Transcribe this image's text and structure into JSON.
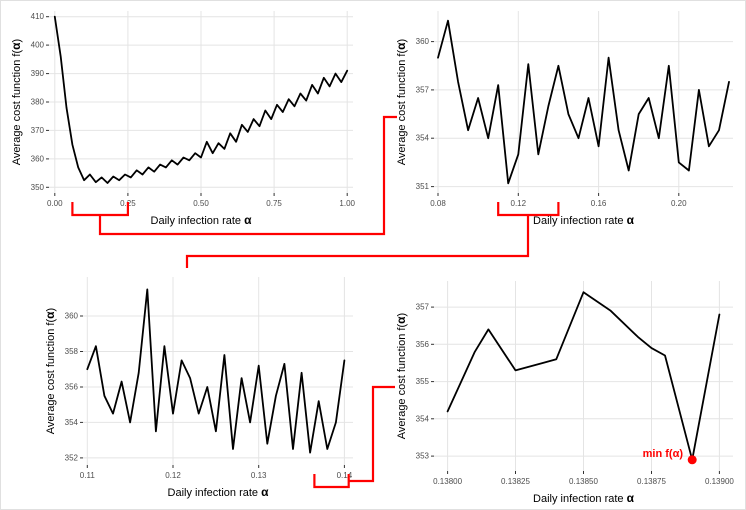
{
  "annotation_color": "#FF0000",
  "line_color": "#000000",
  "chart_data": [
    {
      "type": "line",
      "panel": "overview",
      "xlabel": "Daily infection rate α",
      "ylabel": "Average cost function f(α)",
      "xlim": [
        -0.02,
        1.02
      ],
      "ylim": [
        348,
        412
      ],
      "xticks": [
        0,
        0.25,
        0.5,
        0.75,
        1
      ],
      "xtick_labels": [
        "0.00",
        "0.25",
        "0.50",
        "0.75",
        "1.00"
      ],
      "yticks": [
        350,
        360,
        370,
        380,
        390,
        400,
        410
      ],
      "ytick_labels": [
        "350",
        "360",
        "370",
        "380",
        "390",
        "400",
        "410"
      ],
      "zoom_bracket": [
        0.06,
        0.25
      ],
      "x": [
        0,
        0.02,
        0.04,
        0.06,
        0.08,
        0.1,
        0.12,
        0.14,
        0.16,
        0.18,
        0.2,
        0.22,
        0.24,
        0.26,
        0.28,
        0.3,
        0.32,
        0.34,
        0.36,
        0.38,
        0.4,
        0.42,
        0.44,
        0.46,
        0.48,
        0.5,
        0.52,
        0.54,
        0.56,
        0.58,
        0.6,
        0.62,
        0.64,
        0.66,
        0.68,
        0.7,
        0.72,
        0.74,
        0.76,
        0.78,
        0.8,
        0.82,
        0.84,
        0.86,
        0.88,
        0.9,
        0.92,
        0.94,
        0.96,
        0.98,
        1
      ],
      "y": [
        410,
        396,
        378,
        365,
        357,
        352.5,
        354.5,
        351.8,
        353.5,
        351.5,
        353.8,
        352.5,
        354.5,
        353.5,
        356,
        354.5,
        357,
        355.5,
        358,
        357,
        359.5,
        358,
        360.5,
        359.5,
        362,
        360.5,
        366,
        362,
        365.5,
        363.5,
        369,
        366,
        372,
        369.5,
        374,
        371.5,
        377,
        374,
        379,
        376.5,
        381,
        378.5,
        383,
        380.5,
        386,
        383,
        388.5,
        385.5,
        390,
        387,
        391
      ]
    },
    {
      "type": "line",
      "panel": "zoom-1",
      "xlabel": "Daily infection rate α",
      "ylabel": "Average cost function f(α)",
      "xlim": [
        0.078,
        0.227
      ],
      "ylim": [
        350.6,
        361.9
      ],
      "xticks": [
        0.08,
        0.12,
        0.16,
        0.2
      ],
      "xtick_labels": [
        "0.08",
        "0.12",
        "0.16",
        "0.20"
      ],
      "yticks": [
        351,
        354,
        357,
        360
      ],
      "ytick_labels": [
        "351",
        "354",
        "357",
        "360"
      ],
      "zoom_bracket": [
        0.11,
        0.14
      ],
      "x": [
        0.08,
        0.085,
        0.09,
        0.095,
        0.1,
        0.105,
        0.11,
        0.115,
        0.12,
        0.125,
        0.13,
        0.135,
        0.14,
        0.145,
        0.15,
        0.155,
        0.16,
        0.165,
        0.17,
        0.175,
        0.18,
        0.185,
        0.19,
        0.195,
        0.2,
        0.205,
        0.21,
        0.215,
        0.22,
        0.225
      ],
      "y": [
        359,
        361.3,
        357.5,
        354.5,
        356.5,
        354,
        357.3,
        351.2,
        353,
        358.6,
        353,
        356,
        358.5,
        355.5,
        354,
        356.5,
        353.5,
        359,
        354.5,
        352,
        355.5,
        356.5,
        354,
        358.5,
        352.5,
        352,
        357,
        353.5,
        354.5,
        357.5
      ]
    },
    {
      "type": "line",
      "panel": "zoom-2",
      "xlabel": "Daily infection rate α",
      "ylabel": "Average cost function f(α)",
      "xlim": [
        0.1095,
        0.141
      ],
      "ylim": [
        351.6,
        362.2
      ],
      "xticks": [
        0.11,
        0.12,
        0.13,
        0.14
      ],
      "xtick_labels": [
        "0.11",
        "0.12",
        "0.13",
        "0.14"
      ],
      "yticks": [
        352,
        354,
        356,
        358,
        360
      ],
      "ytick_labels": [
        "352",
        "354",
        "356",
        "358",
        "360"
      ],
      "zoom_bracket": [
        0.1365,
        0.1405
      ],
      "x": [
        0.11,
        0.111,
        0.112,
        0.113,
        0.114,
        0.115,
        0.116,
        0.117,
        0.118,
        0.119,
        0.12,
        0.121,
        0.122,
        0.123,
        0.124,
        0.125,
        0.126,
        0.127,
        0.128,
        0.129,
        0.13,
        0.131,
        0.132,
        0.133,
        0.134,
        0.135,
        0.136,
        0.137,
        0.138,
        0.139,
        0.14
      ],
      "y": [
        357,
        358.3,
        355.5,
        354.5,
        356.3,
        354,
        356.8,
        361.5,
        353.5,
        358.3,
        354.5,
        357.5,
        356.5,
        354.5,
        356,
        353.5,
        357.8,
        352.5,
        356.5,
        354,
        357.2,
        352.8,
        355.5,
        357.3,
        352.5,
        356.8,
        352.3,
        355.2,
        352.5,
        354,
        357.5
      ]
    },
    {
      "type": "line",
      "panel": "zoom-3",
      "xlabel": "Daily infection rate α",
      "ylabel": "Average cost function f(α)",
      "xlim": [
        0.13795,
        0.13905
      ],
      "ylim": [
        352.6,
        357.7
      ],
      "xticks": [
        0.138,
        0.13825,
        0.1385,
        0.13875,
        0.139
      ],
      "xtick_labels": [
        "0.13800",
        "0.13825",
        "0.13850",
        "0.13875",
        "0.13900"
      ],
      "yticks": [
        353,
        354,
        355,
        356,
        357
      ],
      "ytick_labels": [
        "353",
        "354",
        "355",
        "356",
        "357"
      ],
      "x": [
        0.138,
        0.1381,
        0.13815,
        0.13825,
        0.13835,
        0.1384,
        0.1385,
        0.1386,
        0.1387,
        0.13875,
        0.1388,
        0.1389,
        0.139
      ],
      "y": [
        354.2,
        355.8,
        356.4,
        355.3,
        355.5,
        355.6,
        357.4,
        356.9,
        356.2,
        355.9,
        355.7,
        352.9,
        356.8
      ],
      "min_point": {
        "x": 0.1389,
        "y": 352.9
      },
      "annotation": "min f(α)"
    }
  ]
}
